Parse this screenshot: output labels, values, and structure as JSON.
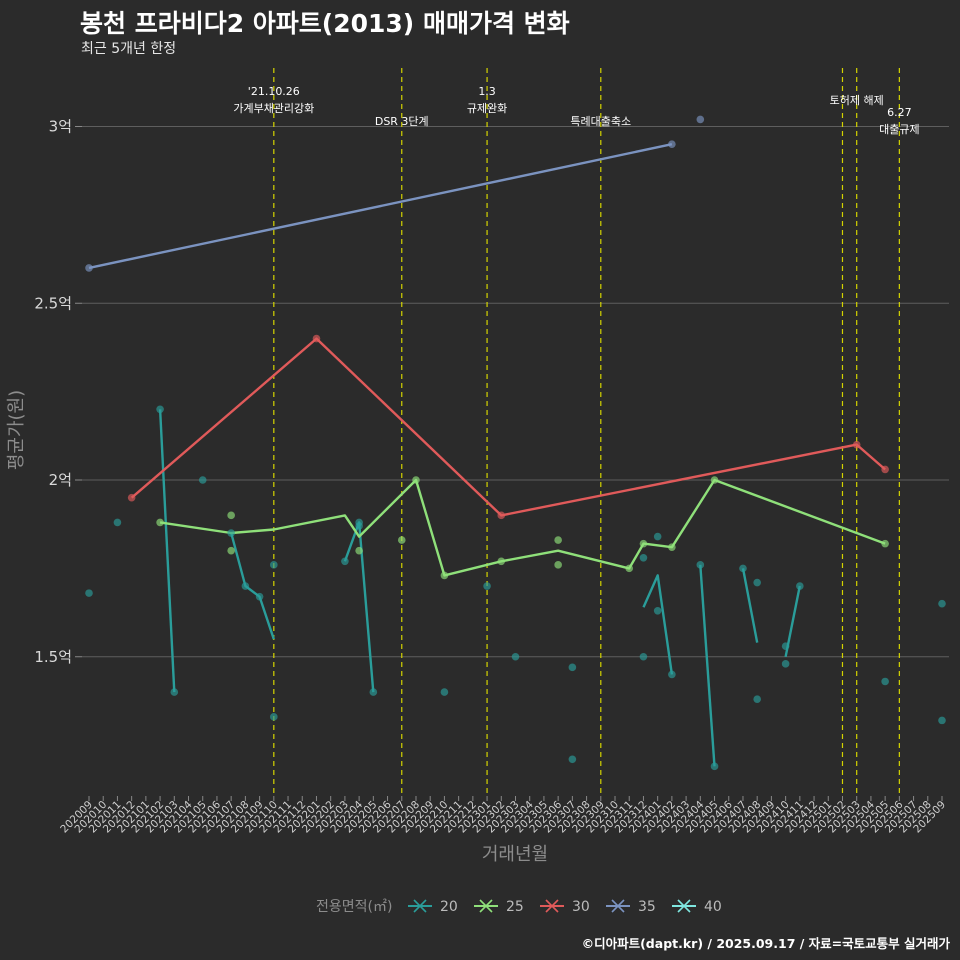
{
  "header": {
    "title": "봉천 프라비다2 아파트(2013) 매매가격 변화",
    "subtitle": "최근 5개년 한정"
  },
  "footer": {
    "credit": "©디아파트(dapt.kr) / 2025.09.17 / 자료=국토교통부 실거래가"
  },
  "chart_data": {
    "type": "line",
    "title": "봉천 프라비다2 아파트(2013) 매매가격 변화",
    "xlabel": "거래년월",
    "ylabel": "평균가(원)",
    "ylim": [
      1.1,
      3.15
    ],
    "yticks": [
      {
        "value": 1.5,
        "label": "1.5억"
      },
      {
        "value": 2.0,
        "label": "2억"
      },
      {
        "value": 2.5,
        "label": "2.5억"
      },
      {
        "value": 3.0,
        "label": "3억"
      }
    ],
    "months": [
      "202009",
      "202010",
      "202011",
      "202012",
      "202101",
      "202102",
      "202103",
      "202104",
      "202105",
      "202106",
      "202107",
      "202108",
      "202109",
      "202110",
      "202111",
      "202112",
      "202201",
      "202202",
      "202203",
      "202204",
      "202205",
      "202206",
      "202207",
      "202208",
      "202209",
      "202210",
      "202211",
      "202212",
      "202301",
      "202302",
      "202303",
      "202304",
      "202305",
      "202306",
      "202307",
      "202308",
      "202309",
      "202310",
      "202311",
      "202312",
      "202401",
      "202402",
      "202403",
      "202404",
      "202405",
      "202406",
      "202407",
      "202408",
      "202409",
      "202410",
      "202411",
      "202412",
      "202501",
      "202502",
      "202503",
      "202504",
      "202505",
      "202506",
      "202507",
      "202508",
      "202509"
    ],
    "annotations": [
      {
        "month": "202110",
        "lines": [
          "'21.10.26",
          "가계부채관리강화"
        ],
        "level": 0
      },
      {
        "month": "202207",
        "lines": [
          "DSR 3단계"
        ],
        "level": 2
      },
      {
        "month": "202301",
        "lines": [
          "1.3",
          "규제완화"
        ],
        "level": 0
      },
      {
        "month": "202309",
        "lines": [
          "특례대출축소"
        ],
        "level": 2
      },
      {
        "month": "202502",
        "lines": [],
        "level": 1
      },
      {
        "month": "202503",
        "lines": [
          "토허제 해제"
        ],
        "level": 1
      },
      {
        "month": "202506",
        "lines": [
          "6.27",
          "대출규제"
        ],
        "level": 3
      }
    ],
    "legend": {
      "title": "전용면적(㎡)",
      "items": [
        {
          "name": "20",
          "color": "#2a9d9a"
        },
        {
          "name": "25",
          "color": "#8fe07a"
        },
        {
          "name": "30",
          "color": "#e05a5a"
        },
        {
          "name": "35",
          "color": "#7b93c0"
        },
        {
          "name": "40",
          "color": "#7fe7e0"
        }
      ]
    },
    "series": [
      {
        "name": "20",
        "color": "#2a9d9a",
        "points": [
          [
            "202009",
            1.68
          ],
          [
            "202011",
            1.88
          ],
          [
            "202102",
            2.2
          ],
          [
            "202103",
            1.4
          ],
          [
            "202105",
            2.0
          ],
          [
            "202107",
            1.85
          ],
          [
            "202108",
            1.7
          ],
          [
            "202109",
            1.67
          ],
          [
            "202110",
            1.76
          ],
          [
            "202110",
            1.33
          ],
          [
            "202203",
            1.77
          ],
          [
            "202204",
            1.88
          ],
          [
            "202204",
            1.87
          ],
          [
            "202205",
            1.4
          ],
          [
            "202210",
            1.4
          ],
          [
            "202301",
            1.7
          ],
          [
            "202303",
            1.5
          ],
          [
            "202307",
            1.47
          ],
          [
            "202307",
            1.21
          ],
          [
            "202312",
            1.5
          ],
          [
            "202312",
            1.78
          ],
          [
            "202401",
            1.84
          ],
          [
            "202401",
            1.63
          ],
          [
            "202402",
            1.45
          ],
          [
            "202404",
            1.76
          ],
          [
            "202405",
            1.19
          ],
          [
            "202407",
            1.75
          ],
          [
            "202408",
            1.71
          ],
          [
            "202408",
            1.38
          ],
          [
            "202410",
            1.53
          ],
          [
            "202410",
            1.48
          ],
          [
            "202411",
            1.7
          ],
          [
            "202505",
            1.43
          ],
          [
            "202509",
            1.65
          ],
          [
            "202509",
            1.32
          ]
        ],
        "lines": [
          [
            [
              "202102",
              2.2
            ],
            [
              "202103",
              1.4
            ]
          ],
          [
            [
              "202107",
              1.85
            ],
            [
              "202108",
              1.7
            ],
            [
              "202109",
              1.67
            ],
            [
              "202110",
              1.55
            ]
          ],
          [
            [
              "202203",
              1.77
            ],
            [
              "202204",
              1.88
            ],
            [
              "202205",
              1.4
            ]
          ],
          [
            [
              "202312",
              1.64
            ],
            [
              "202401",
              1.73
            ],
            [
              "202402",
              1.45
            ]
          ],
          [
            [
              "202404",
              1.76
            ],
            [
              "202405",
              1.19
            ]
          ],
          [
            [
              "202407",
              1.75
            ],
            [
              "202408",
              1.54
            ]
          ],
          [
            [
              "202410",
              1.5
            ],
            [
              "202411",
              1.7
            ]
          ]
        ]
      },
      {
        "name": "25",
        "color": "#8fe07a",
        "points": [
          [
            "202102",
            1.88
          ],
          [
            "202107",
            1.9
          ],
          [
            "202107",
            1.8
          ],
          [
            "202204",
            1.8
          ],
          [
            "202207",
            1.83
          ],
          [
            "202208",
            2.0
          ],
          [
            "202210",
            1.73
          ],
          [
            "202302",
            1.77
          ],
          [
            "202306",
            1.83
          ],
          [
            "202306",
            1.76
          ],
          [
            "202311",
            1.75
          ],
          [
            "202312",
            1.82
          ],
          [
            "202402",
            1.81
          ],
          [
            "202405",
            2.0
          ],
          [
            "202505",
            1.82
          ]
        ],
        "lines": [
          [
            [
              "202102",
              1.88
            ],
            [
              "202107",
              1.85
            ],
            [
              "202110",
              1.86
            ],
            [
              "202203",
              1.9
            ],
            [
              "202204",
              1.84
            ],
            [
              "202208",
              2.0
            ],
            [
              "202210",
              1.73
            ],
            [
              "202302",
              1.77
            ],
            [
              "202306",
              1.8
            ],
            [
              "202311",
              1.75
            ],
            [
              "202312",
              1.82
            ],
            [
              "202402",
              1.81
            ],
            [
              "202405",
              2.0
            ],
            [
              "202505",
              1.82
            ]
          ]
        ]
      },
      {
        "name": "30",
        "color": "#e05a5a",
        "points": [
          [
            "202012",
            1.95
          ],
          [
            "202201",
            2.4
          ],
          [
            "202302",
            1.9
          ],
          [
            "202503",
            2.1
          ],
          [
            "202505",
            2.03
          ]
        ],
        "lines": [
          [
            [
              "202012",
              1.95
            ],
            [
              "202201",
              2.4
            ],
            [
              "202302",
              1.9
            ],
            [
              "202503",
              2.1
            ],
            [
              "202505",
              2.03
            ]
          ]
        ]
      },
      {
        "name": "35",
        "color": "#7b93c0",
        "points": [
          [
            "202009",
            2.6
          ],
          [
            "202402",
            2.95
          ],
          [
            "202404",
            3.02
          ]
        ],
        "lines": [
          [
            [
              "202009",
              2.6
            ],
            [
              "202402",
              2.95
            ]
          ]
        ]
      },
      {
        "name": "40",
        "color": "#7fe7e0",
        "points": [],
        "lines": []
      }
    ]
  }
}
